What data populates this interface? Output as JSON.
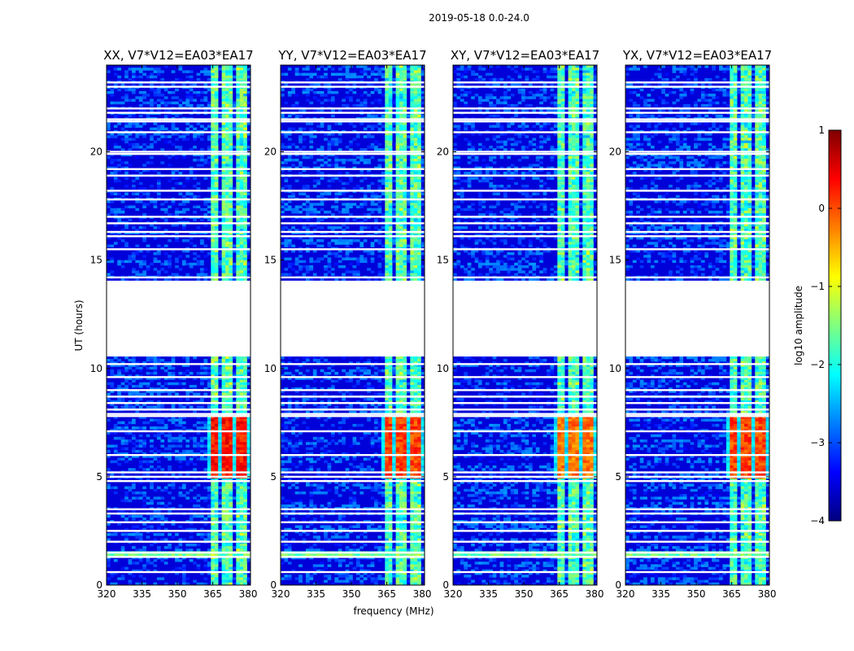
{
  "figure": {
    "suptitle": "2019-05-18 0.0-24.0",
    "xlabel": "frequency (MHz)",
    "ylabel": "UT (hours)"
  },
  "colors": {
    "gap": "#ffffff",
    "background": "#ffffff",
    "axis": "#000000",
    "colormap": [
      "#00007f",
      "#0000ff",
      "#007fff",
      "#00ffff",
      "#7fff7f",
      "#ffff00",
      "#ff7f00",
      "#ff0000",
      "#7f0000"
    ]
  },
  "chart_data": {
    "type": "heatmap",
    "title": "2019-05-18 0.0-24.0",
    "xlabel": "frequency (MHz)",
    "ylabel": "UT (hours)",
    "xlim": [
      320,
      381
    ],
    "ylim": [
      0,
      24
    ],
    "xticks": [
      "320",
      "335",
      "350",
      "365",
      "380"
    ],
    "yticks": [
      "0",
      "5",
      "10",
      "15",
      "20"
    ],
    "panels": [
      {
        "title": "XX, V7*V12=EA03*EA17",
        "strength": 1.0
      },
      {
        "title": "YY, V7*V12=EA03*EA17",
        "strength": 0.8
      },
      {
        "title": "XY, V7*V12=EA03*EA17",
        "strength": 0.6
      },
      {
        "title": "YX, V7*V12=EA03*EA17",
        "strength": 0.8
      }
    ],
    "no_data_ranges_hours": [
      [
        14.05,
        10.55
      ]
    ],
    "flagged_rows_hours": [
      0.6,
      1.3,
      1.5,
      2.0,
      2.5,
      2.9,
      3.3,
      3.5,
      4.8,
      5.0,
      5.2,
      6.0,
      7.1,
      7.8,
      7.9,
      8.1,
      8.4,
      8.7,
      9.0,
      9.6,
      10.2,
      14.2,
      15.5,
      16.1,
      16.3,
      16.7,
      17.0,
      17.8,
      18.2,
      18.9,
      19.2,
      19.9,
      20.0,
      20.9,
      21.4,
      21.5,
      21.8,
      22.0,
      23.0,
      23.2
    ],
    "rfi_bands_mhz": [
      [
        363.5,
        366
      ],
      [
        366.5,
        368
      ],
      [
        369.5,
        372
      ],
      [
        372.5,
        374
      ],
      [
        375.5,
        377.5
      ],
      [
        378.5,
        379.5
      ]
    ],
    "enhanced_interval_hours": [
      4.9,
      7.8
    ],
    "colorbar": {
      "label": "log10 amplitude",
      "range": [
        -4,
        1
      ],
      "ticks": [
        "1",
        "0",
        "−1",
        "−2",
        "−3",
        "−4"
      ]
    }
  }
}
